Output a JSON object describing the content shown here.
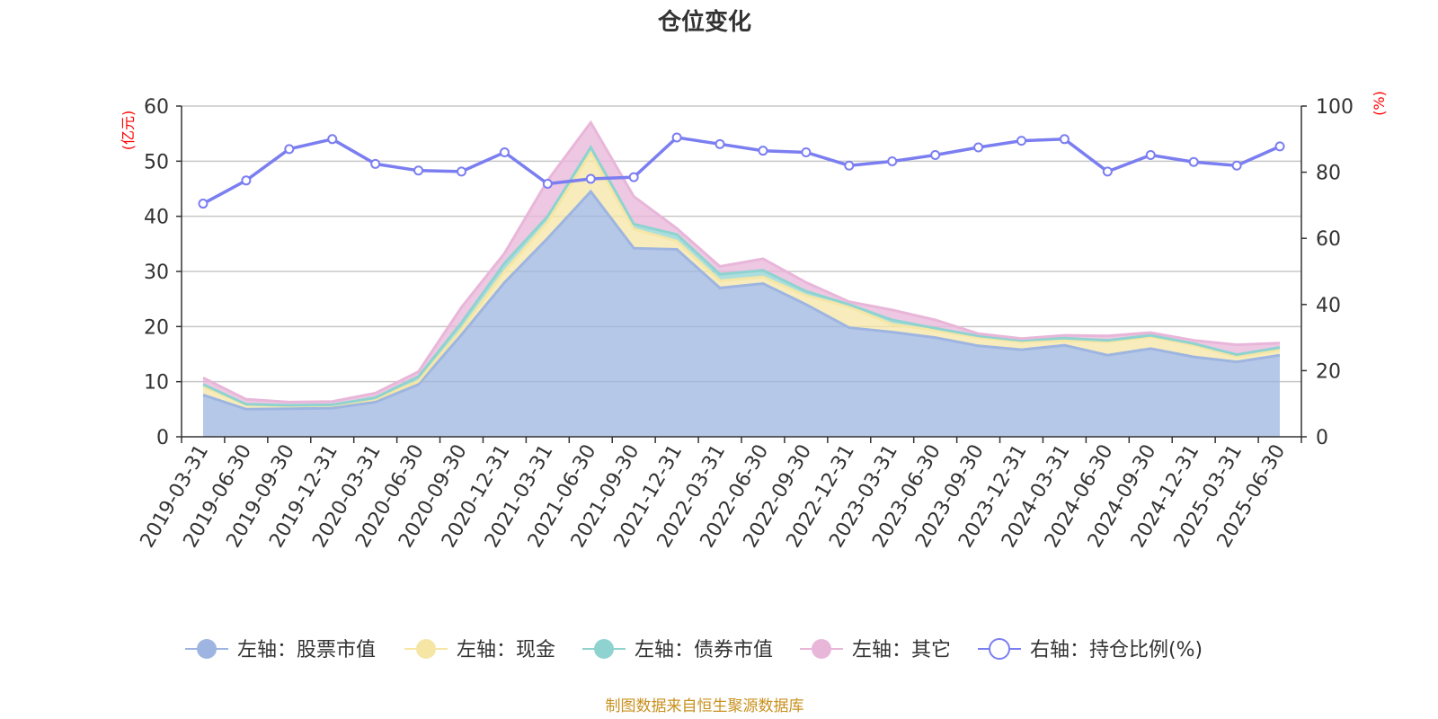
{
  "chart_data": {
    "type": "area",
    "title": "仓位变化",
    "left_axis": {
      "unit": "(亿元)",
      "ylim": [
        0,
        60
      ],
      "ticks": [
        "0",
        "10",
        "20",
        "30",
        "40",
        "50",
        "60"
      ]
    },
    "right_axis": {
      "unit": "(%)",
      "ylim": [
        0,
        100
      ],
      "ticks": [
        "0",
        "20",
        "40",
        "60",
        "80",
        "100"
      ]
    },
    "categories": [
      "2019-03-31",
      "2019-06-30",
      "2019-09-30",
      "2019-12-31",
      "2020-03-31",
      "2020-06-30",
      "2020-09-30",
      "2020-12-31",
      "2021-03-31",
      "2021-06-30",
      "2021-09-30",
      "2021-12-31",
      "2022-03-31",
      "2022-06-30",
      "2022-09-30",
      "2022-12-31",
      "2023-03-31",
      "2023-06-30",
      "2023-09-30",
      "2023-12-31",
      "2024-03-31",
      "2024-06-30",
      "2024-09-30",
      "2024-12-31",
      "2025-03-31",
      "2025-06-30"
    ],
    "series": [
      {
        "name": "左轴：股票市值",
        "axis": "left",
        "stack": true,
        "color": "#9db5e0",
        "values": [
          7.6,
          5.0,
          5.1,
          5.2,
          6.3,
          9.5,
          18.5,
          28.0,
          36.0,
          44.5,
          34.2,
          34.0,
          27.0,
          27.8,
          24.0,
          19.8,
          19.0,
          18.0,
          16.5,
          15.8,
          16.6,
          14.8,
          16.0,
          14.5,
          13.6,
          14.8
        ]
      },
      {
        "name": "左轴：现金",
        "axis": "left",
        "stack": true,
        "color": "#f5e6a6",
        "values": [
          1.5,
          0.8,
          0.5,
          0.5,
          0.5,
          0.6,
          1.0,
          2.0,
          3.0,
          7.0,
          3.5,
          1.5,
          1.3,
          1.2,
          1.6,
          3.8,
          1.4,
          1.3,
          1.5,
          1.4,
          0.9,
          2.4,
          2.2,
          2.1,
          0.9,
          0.9
        ]
      },
      {
        "name": "左轴：债券市值",
        "axis": "left",
        "stack": true,
        "color": "#8fd3d0",
        "values": [
          0.4,
          0.1,
          0.1,
          0.1,
          0.3,
          0.8,
          1.2,
          1.5,
          1.0,
          1.0,
          0.9,
          1.2,
          1.2,
          1.2,
          0.8,
          0.4,
          0.8,
          0.4,
          0.3,
          0.3,
          0.4,
          0.3,
          0.2,
          0.3,
          0.4,
          0.5
        ]
      },
      {
        "name": "左轴：其它",
        "axis": "left",
        "stack": true,
        "color": "#e8b6d9",
        "values": [
          1.2,
          0.9,
          0.6,
          0.6,
          0.8,
          0.9,
          2.8,
          1.8,
          6.5,
          4.5,
          5.0,
          1.1,
          1.4,
          2.1,
          1.6,
          0.5,
          1.8,
          1.5,
          0.4,
          0.3,
          0.5,
          0.8,
          0.5,
          0.6,
          1.8,
          0.8
        ]
      },
      {
        "name": "右轴：持仓比例(%)",
        "axis": "right",
        "stack": false,
        "color": "#7b7ef0",
        "values": [
          70.5,
          77.5,
          87,
          90,
          82.5,
          80.5,
          80.2,
          86,
          76.5,
          78,
          78.5,
          90.5,
          88.5,
          86.5,
          86,
          82,
          83.3,
          85.2,
          87.5,
          89.5,
          90,
          80.2,
          85.2,
          83.1,
          82,
          87.8
        ]
      }
    ],
    "grid": true,
    "legend_position": "bottom"
  },
  "source_note": "制图数据来自恒生聚源数据库"
}
